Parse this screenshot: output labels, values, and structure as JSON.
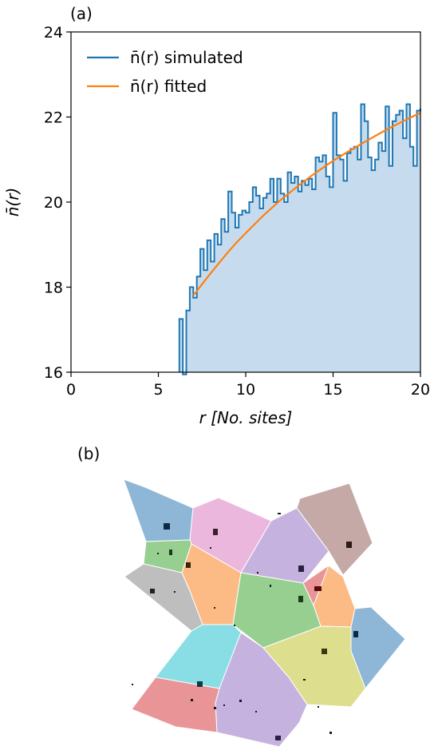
{
  "panels": {
    "a_label": "(a)",
    "b_label": "(b)"
  },
  "chart_data": {
    "type": "line",
    "title": "",
    "xlabel": "r [No. sites]",
    "ylabel": "n̄(r)",
    "xlim": [
      0,
      20
    ],
    "ylim": [
      16,
      24
    ],
    "xticks": [
      0,
      5,
      10,
      15,
      20
    ],
    "yticks": [
      16,
      18,
      20,
      22,
      24
    ],
    "grid": false,
    "legend_position": "top-left",
    "colors": {
      "simulated": "#1f77b4",
      "fill": "#c6dcee",
      "fitted": "#ff7f0e"
    },
    "series": [
      {
        "name": "n̄(r) simulated",
        "style": "steps-filled",
        "x": [
          6.2,
          6.4,
          6.6,
          6.8,
          7.0,
          7.2,
          7.4,
          7.6,
          7.8,
          8.0,
          8.2,
          8.4,
          8.6,
          8.8,
          9.0,
          9.2,
          9.4,
          9.6,
          9.8,
          10.0,
          10.2,
          10.4,
          10.6,
          10.8,
          11.0,
          11.2,
          11.4,
          11.6,
          11.8,
          12.0,
          12.2,
          12.4,
          12.6,
          12.8,
          13.0,
          13.2,
          13.4,
          13.6,
          13.8,
          14.0,
          14.2,
          14.4,
          14.6,
          14.8,
          15.0,
          15.2,
          15.4,
          15.6,
          15.8,
          16.0,
          16.2,
          16.4,
          16.6,
          16.8,
          17.0,
          17.2,
          17.4,
          17.6,
          17.8,
          18.0,
          18.2,
          18.4,
          18.6,
          18.8,
          19.0,
          19.2,
          19.4,
          19.6,
          19.8,
          20.0
        ],
        "values": [
          17.25,
          15.95,
          17.45,
          18.0,
          17.75,
          18.25,
          18.9,
          18.4,
          19.1,
          18.6,
          19.25,
          19.0,
          19.6,
          19.3,
          20.25,
          19.75,
          19.4,
          19.7,
          19.8,
          19.75,
          20.0,
          20.35,
          20.15,
          19.85,
          20.1,
          20.2,
          20.55,
          20.0,
          20.55,
          20.2,
          20.0,
          20.7,
          20.45,
          20.6,
          20.25,
          20.5,
          20.4,
          20.55,
          20.3,
          21.05,
          20.95,
          21.1,
          20.6,
          20.35,
          22.1,
          21.1,
          21.0,
          20.5,
          21.15,
          21.25,
          21.3,
          21.0,
          22.3,
          21.9,
          21.05,
          20.75,
          21.0,
          21.4,
          21.2,
          22.25,
          20.85,
          21.9,
          22.05,
          22.15,
          21.5,
          22.3,
          21.3,
          20.85,
          22.15,
          22.2
        ]
      },
      {
        "name": "n̄(r) fitted",
        "style": "line",
        "x": [
          7.0,
          7.5,
          8.0,
          8.5,
          9.0,
          9.5,
          10.0,
          11.0,
          12.0,
          13.0,
          14.0,
          15.0,
          16.0,
          17.0,
          18.0,
          19.0,
          20.0
        ],
        "values": [
          17.8,
          18.07,
          18.33,
          18.58,
          18.83,
          19.06,
          19.27,
          19.68,
          20.05,
          20.38,
          20.69,
          20.97,
          21.22,
          21.46,
          21.69,
          21.9,
          22.1
        ]
      }
    ]
  },
  "voronoi": {
    "colors": {
      "blue": "#8eb6d6",
      "pink": "#ecb7dc",
      "purple": "#c5b2df",
      "brown": "#c4a9a6",
      "green": "#96cf90",
      "orange": "#fcbb85",
      "gray": "#bebebe",
      "red": "#e99598",
      "cyan": "#89dde5",
      "olive": "#dddf8f"
    }
  }
}
